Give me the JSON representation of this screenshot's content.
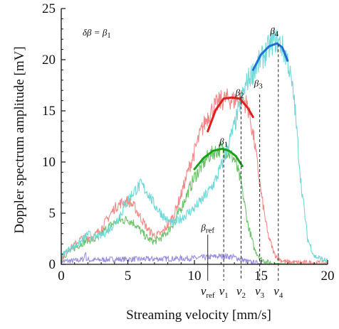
{
  "chart_data": {
    "type": "line",
    "xlabel": "Streaming velocity [mm/s]",
    "ylabel": "Doppler spectrum amplitude [mV]",
    "xlim": [
      0,
      20
    ],
    "ylim": [
      0,
      25
    ],
    "x_ticks": [
      0,
      5,
      10,
      15,
      20
    ],
    "y_ticks": [
      0,
      5,
      10,
      15,
      20,
      25
    ],
    "grid": false,
    "legend": "none",
    "annotation_condition": {
      "prefix": "δβ",
      "equals": "β",
      "sub": "1"
    },
    "curve_labels": [
      {
        "base": "β",
        "sub": "ref",
        "x": 11.0,
        "y": 3.3
      },
      {
        "base": "β",
        "sub": "1",
        "x": 12.2,
        "y": 11.7
      },
      {
        "base": "β",
        "sub": "2",
        "x": 13.4,
        "y": 16.5
      },
      {
        "base": "β",
        "sub": "3",
        "x": 14.8,
        "y": 17.4
      },
      {
        "base": "β",
        "sub": "4",
        "x": 16.0,
        "y": 22.5
      }
    ],
    "velocity_markers": [
      {
        "base": "v",
        "sub": "ref",
        "x": 11.0,
        "ytop": 2.9
      },
      {
        "base": "v",
        "sub": "1",
        "x": 12.2,
        "ytop": 11.2
      },
      {
        "base": "v",
        "sub": "2",
        "x": 13.5,
        "ytop": 16.4
      },
      {
        "base": "v",
        "sub": "3",
        "x": 14.9,
        "ytop": 16.6
      },
      {
        "base": "v",
        "sub": "4",
        "x": 16.3,
        "ytop": 21.5
      }
    ],
    "series": [
      {
        "color": "#9b8fe0",
        "kind": "raw",
        "x": [
          0,
          1,
          1.7,
          1.8,
          1.9,
          2.2,
          4,
          6,
          8,
          10,
          11,
          12,
          12.8,
          13.5,
          14,
          15,
          17,
          20
        ],
        "y": [
          0.3,
          0.35,
          0.5,
          1.3,
          0.5,
          0.4,
          0.5,
          0.5,
          0.55,
          0.6,
          0.7,
          0.8,
          0.75,
          0.5,
          0.25,
          0.05,
          0.02,
          0.02
        ]
      },
      {
        "color": "#6ac26a",
        "kind": "raw",
        "x": [
          0,
          0.5,
          1,
          1.5,
          2,
          2.5,
          3,
          3.5,
          4,
          4.5,
          5,
          5.5,
          6,
          6.5,
          7,
          7.5,
          8,
          8.5,
          9,
          9.5,
          10,
          10.5,
          11,
          11.5,
          12,
          12.5,
          13,
          13.5,
          14,
          14.5,
          15,
          15.5,
          16,
          17,
          20
        ],
        "y": [
          0.5,
          1.2,
          1.6,
          2.0,
          2.4,
          2.4,
          3.0,
          3.6,
          4.1,
          4.3,
          4.4,
          4.0,
          3.2,
          2.5,
          2.2,
          2.6,
          3.2,
          4.2,
          5.5,
          7.0,
          8.5,
          9.5,
          10.5,
          11.0,
          11.3,
          11.0,
          10.3,
          8.0,
          4.0,
          1.5,
          0.5,
          0.2,
          0.1,
          0.05,
          0.05
        ]
      },
      {
        "color": "#f08a8a",
        "kind": "raw",
        "x": [
          0,
          0.5,
          1,
          1.5,
          2,
          2.5,
          3,
          3.5,
          4,
          4.5,
          5,
          5.5,
          6,
          6.5,
          7,
          7.5,
          8,
          8.5,
          9,
          9.5,
          10,
          10.5,
          11,
          11.5,
          12,
          12.5,
          13,
          13.5,
          14,
          14.5,
          15,
          15.5,
          16,
          16.5,
          17,
          20
        ],
        "y": [
          0.6,
          1.4,
          1.9,
          2.5,
          2.6,
          2.8,
          3.5,
          4.5,
          5.5,
          6.0,
          6.2,
          5.6,
          4.5,
          3.4,
          2.8,
          3.0,
          3.8,
          5.0,
          6.8,
          9.0,
          11.0,
          13.0,
          14.5,
          15.4,
          16.0,
          16.2,
          16.0,
          16.3,
          15.5,
          12.0,
          7.0,
          3.0,
          1.0,
          0.4,
          0.2,
          0.1
        ]
      },
      {
        "color": "#6fd8d8",
        "kind": "raw",
        "x": [
          0,
          0.5,
          1,
          1.5,
          2,
          2.5,
          3,
          3.5,
          4,
          4.5,
          5,
          5.5,
          6,
          6.5,
          7,
          7.5,
          8,
          8.5,
          9,
          9.5,
          10,
          10.5,
          11,
          11.5,
          12,
          12.5,
          13,
          13.5,
          14,
          14.5,
          15,
          15.5,
          16,
          16.5,
          17,
          17.5,
          18,
          18.5,
          19,
          20
        ],
        "y": [
          0.8,
          1.4,
          1.8,
          2.2,
          3.0,
          2.6,
          2.8,
          3.3,
          4.0,
          5.0,
          6.3,
          7.2,
          7.8,
          7.0,
          5.8,
          5.0,
          4.2,
          4.0,
          4.5,
          5.0,
          5.5,
          6.2,
          7.0,
          8.0,
          9.5,
          11.5,
          13.5,
          16.0,
          18.0,
          19.0,
          20.0,
          21.0,
          22.0,
          21.5,
          20.0,
          16.0,
          8.0,
          2.5,
          0.8,
          0.3
        ]
      },
      {
        "color": "#1aa01a",
        "kind": "fit",
        "x": [
          10.0,
          10.7,
          11.4,
          12.1,
          12.6,
          13.1,
          13.6
        ],
        "y": [
          9.3,
          10.4,
          11.1,
          11.3,
          11.1,
          10.6,
          9.6
        ]
      },
      {
        "color": "#e01e1e",
        "kind": "fit",
        "x": [
          11.0,
          11.6,
          12.2,
          12.8,
          13.4,
          14.0,
          14.4
        ],
        "y": [
          13.0,
          15.1,
          16.2,
          16.3,
          16.2,
          15.3,
          14.4
        ]
      },
      {
        "color": "#1f6fd6",
        "kind": "fit",
        "x": [
          14.4,
          15.0,
          15.6,
          16.2,
          16.6,
          17.0
        ],
        "y": [
          19.0,
          20.5,
          21.3,
          21.6,
          21.2,
          19.9
        ]
      }
    ]
  }
}
